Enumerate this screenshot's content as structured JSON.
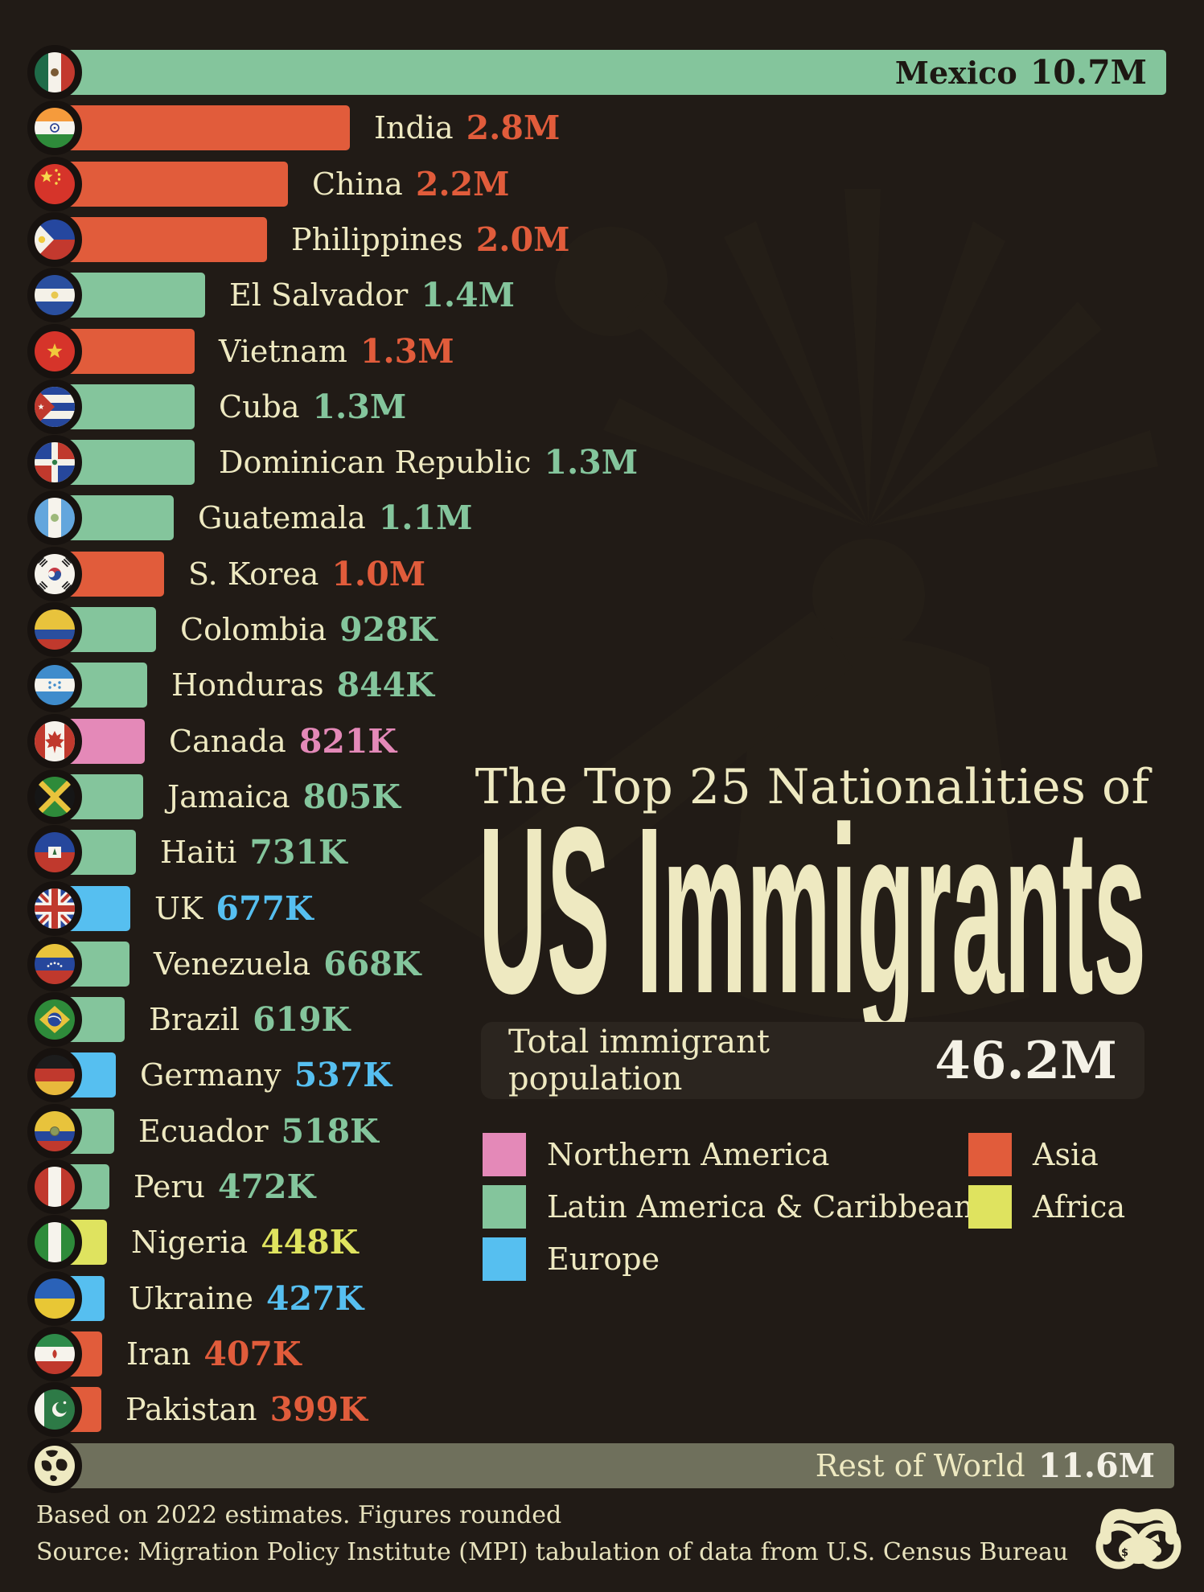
{
  "title": {
    "line1": "The Top 25 Nationalities of",
    "line2": "US Immigrants"
  },
  "total_box": {
    "label": "Total immigrant population",
    "value": "46.2M"
  },
  "footer": {
    "line1": "Based on 2022 estimates. Figures rounded",
    "line2": "Source: Migration Policy Institute (MPI) tabulation of data from U.S. Census Bureau"
  },
  "colors": {
    "background": "#211b16",
    "cream_text": "#eee9c1",
    "white_text": "#f4f1e6",
    "dark_text": "#1d1813",
    "box_background": "#2b251f",
    "regions": {
      "northern_america": "#e489b8",
      "latin_america": "#84c59c",
      "europe": "#56bff0",
      "asia": "#e15c3b",
      "africa": "#dfe35f",
      "rest_of_world": "#6f705c"
    }
  },
  "chart_data": {
    "type": "bar",
    "orientation": "horizontal",
    "title": "The Top 25 Nationalities of US Immigrants",
    "total_label": "Total immigrant population",
    "total_value": "46.2M",
    "legend": [
      {
        "label": "Northern America",
        "region": "northern_america"
      },
      {
        "label": "Latin America & Caribbean",
        "region": "latin_america"
      },
      {
        "label": "Europe",
        "region": "europe"
      },
      {
        "label": "Asia",
        "region": "asia"
      },
      {
        "label": "Africa",
        "region": "africa"
      }
    ],
    "bars": [
      {
        "name": "Mexico",
        "value_label": "10.7M",
        "millions": 10.7,
        "region": "latin_america",
        "flag": "mexico",
        "label_inside": "dark"
      },
      {
        "name": "India",
        "value_label": "2.8M",
        "millions": 2.8,
        "region": "asia",
        "flag": "india",
        "label_inside": null
      },
      {
        "name": "China",
        "value_label": "2.2M",
        "millions": 2.2,
        "region": "asia",
        "flag": "china",
        "label_inside": null
      },
      {
        "name": "Philippines",
        "value_label": "2.0M",
        "millions": 2.0,
        "region": "asia",
        "flag": "philippines",
        "label_inside": null
      },
      {
        "name": "El Salvador",
        "value_label": "1.4M",
        "millions": 1.4,
        "region": "latin_america",
        "flag": "el-salvador",
        "label_inside": null
      },
      {
        "name": "Vietnam",
        "value_label": "1.3M",
        "millions": 1.3,
        "region": "asia",
        "flag": "vietnam",
        "label_inside": null
      },
      {
        "name": "Cuba",
        "value_label": "1.3M",
        "millions": 1.3,
        "region": "latin_america",
        "flag": "cuba",
        "label_inside": null
      },
      {
        "name": "Dominican Republic",
        "value_label": "1.3M",
        "millions": 1.3,
        "region": "latin_america",
        "flag": "dominican-republic",
        "label_inside": null
      },
      {
        "name": "Guatemala",
        "value_label": "1.1M",
        "millions": 1.1,
        "region": "latin_america",
        "flag": "guatemala",
        "label_inside": null
      },
      {
        "name": "S. Korea",
        "value_label": "1.0M",
        "millions": 1.0,
        "region": "asia",
        "flag": "south-korea",
        "label_inside": null
      },
      {
        "name": "Colombia",
        "value_label": "928K",
        "millions": 0.928,
        "region": "latin_america",
        "flag": "colombia",
        "label_inside": null
      },
      {
        "name": "Honduras",
        "value_label": "844K",
        "millions": 0.844,
        "region": "latin_america",
        "flag": "honduras",
        "label_inside": null
      },
      {
        "name": "Canada",
        "value_label": "821K",
        "millions": 0.821,
        "region": "northern_america",
        "flag": "canada",
        "label_inside": null
      },
      {
        "name": "Jamaica",
        "value_label": "805K",
        "millions": 0.805,
        "region": "latin_america",
        "flag": "jamaica",
        "label_inside": null
      },
      {
        "name": "Haiti",
        "value_label": "731K",
        "millions": 0.731,
        "region": "latin_america",
        "flag": "haiti",
        "label_inside": null
      },
      {
        "name": "UK",
        "value_label": "677K",
        "millions": 0.677,
        "region": "europe",
        "flag": "uk",
        "label_inside": null
      },
      {
        "name": "Venezuela",
        "value_label": "668K",
        "millions": 0.668,
        "region": "latin_america",
        "flag": "venezuela",
        "label_inside": null
      },
      {
        "name": "Brazil",
        "value_label": "619K",
        "millions": 0.619,
        "region": "latin_america",
        "flag": "brazil",
        "label_inside": null
      },
      {
        "name": "Germany",
        "value_label": "537K",
        "millions": 0.537,
        "region": "europe",
        "flag": "germany",
        "label_inside": null
      },
      {
        "name": "Ecuador",
        "value_label": "518K",
        "millions": 0.518,
        "region": "latin_america",
        "flag": "ecuador",
        "label_inside": null
      },
      {
        "name": "Peru",
        "value_label": "472K",
        "millions": 0.472,
        "region": "latin_america",
        "flag": "peru",
        "label_inside": null
      },
      {
        "name": "Nigeria",
        "value_label": "448K",
        "millions": 0.448,
        "region": "africa",
        "flag": "nigeria",
        "label_inside": null
      },
      {
        "name": "Ukraine",
        "value_label": "427K",
        "millions": 0.427,
        "region": "europe",
        "flag": "ukraine",
        "label_inside": null
      },
      {
        "name": "Iran",
        "value_label": "407K",
        "millions": 0.407,
        "region": "asia",
        "flag": "iran",
        "label_inside": null
      },
      {
        "name": "Pakistan",
        "value_label": "399K",
        "millions": 0.399,
        "region": "asia",
        "flag": "pakistan",
        "label_inside": null
      },
      {
        "name": "Rest of World",
        "value_label": "11.6M",
        "millions": 11.6,
        "region": "rest_of_world",
        "flag": "globe",
        "label_inside": "light"
      }
    ],
    "footnote1": "Based on 2022 estimates. Figures rounded",
    "footnote2": "Source: Migration Policy Institute (MPI) tabulation of data from U.S. Census Bureau"
  }
}
